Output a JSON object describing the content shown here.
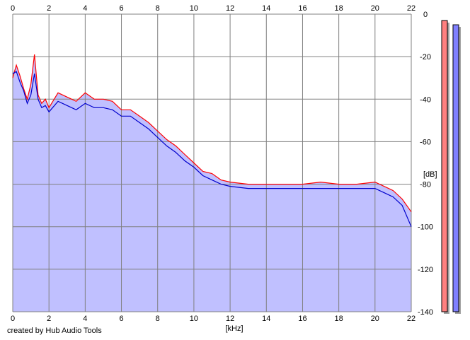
{
  "credit": "created by Hub Audio Tools",
  "chart_data": {
    "type": "line",
    "xlabel": "[kHz]",
    "ylabel": "[dB]",
    "xlim": [
      0,
      22
    ],
    "ylim": [
      -140,
      0
    ],
    "x_ticks": [
      0,
      2,
      4,
      6,
      8,
      10,
      12,
      14,
      16,
      18,
      20,
      22
    ],
    "y_ticks": [
      0,
      -20,
      -40,
      -60,
      -80,
      -100,
      -120,
      -140
    ],
    "grid": true,
    "fill_color": "#c0c0ff",
    "x": [
      0.0,
      0.2,
      0.4,
      0.6,
      0.8,
      1.0,
      1.2,
      1.4,
      1.6,
      1.8,
      2.0,
      2.5,
      3.0,
      3.5,
      4.0,
      4.5,
      5.0,
      5.5,
      6.0,
      6.5,
      7.0,
      7.5,
      8.0,
      8.5,
      9.0,
      9.5,
      10.0,
      10.5,
      11.0,
      11.5,
      12.0,
      13.0,
      14.0,
      15.0,
      16.0,
      17.0,
      18.0,
      19.0,
      20.0,
      20.5,
      21.0,
      21.5,
      22.0
    ],
    "series": [
      {
        "color": "#ff0000",
        "values": [
          -30,
          -24,
          -29,
          -35,
          -40,
          -33,
          -19,
          -38,
          -42,
          -40,
          -44,
          -37,
          -39,
          -41,
          -37,
          -40,
          -40,
          -41,
          -45,
          -45,
          -48,
          -51,
          -55,
          -59,
          -62,
          -66,
          -70,
          -74,
          -75,
          -78,
          -79,
          -80,
          -80,
          -80,
          -80,
          -79,
          -80,
          -80,
          -79,
          -81,
          -83,
          -87,
          -93
        ]
      },
      {
        "color": "#0000cc",
        "values": [
          -28,
          -27,
          -32,
          -36,
          -42,
          -38,
          -28,
          -40,
          -44,
          -43,
          -46,
          -41,
          -43,
          -45,
          -42,
          -44,
          -44,
          -45,
          -48,
          -48,
          -51,
          -54,
          -58,
          -62,
          -65,
          -69,
          -72,
          -76,
          -78,
          -80,
          -81,
          -82,
          -82,
          -82,
          -82,
          -82,
          -82,
          -82,
          -82,
          -84,
          -86,
          -90,
          -100
        ]
      }
    ],
    "meters": [
      {
        "color": "#ff8080",
        "level_db": -3
      },
      {
        "color": "#8080ff",
        "level_db": -5
      }
    ]
  }
}
